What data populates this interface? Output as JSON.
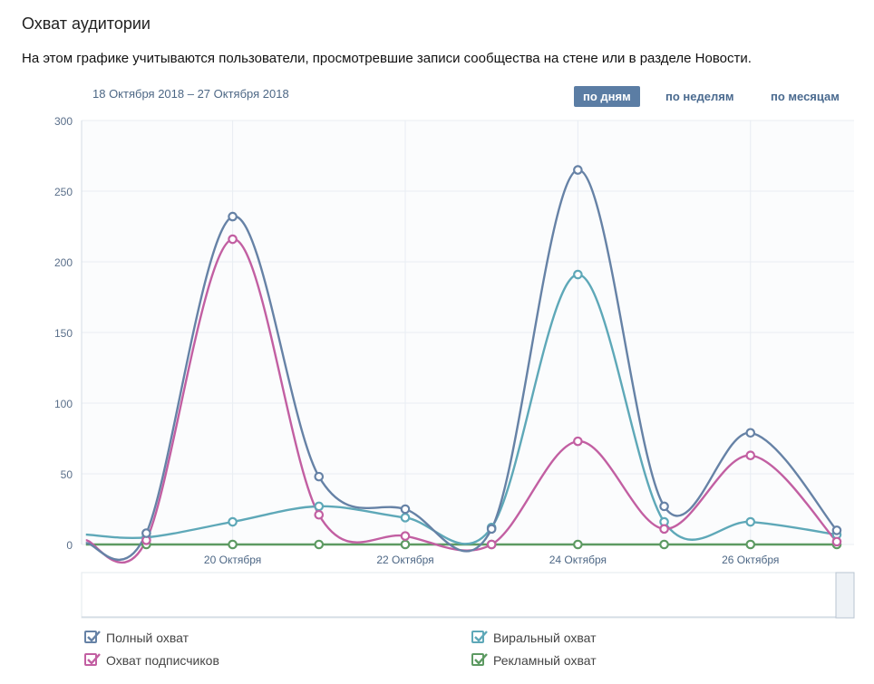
{
  "header": {
    "title": "Охват аудитории",
    "subtitle": "На этом графике учитываются пользователи, просмотревшие записи сообщества на стене или в разделе Новости.",
    "date_range": "18 Октября 2018 – 27 Октября 2018"
  },
  "period_tabs": [
    {
      "label": "по дням",
      "active": true
    },
    {
      "label": "по неделям",
      "active": false
    },
    {
      "label": "по месяцам",
      "active": false
    }
  ],
  "chart_data": {
    "type": "line",
    "x": [
      18.3,
      19,
      20,
      21,
      22,
      23,
      24,
      25,
      26,
      27
    ],
    "x_ticks": [
      {
        "x": 20,
        "label": "20 Октября"
      },
      {
        "x": 22,
        "label": "22 Октября"
      },
      {
        "x": 24,
        "label": "24 Октября"
      },
      {
        "x": 26,
        "label": "26 Октября"
      }
    ],
    "xlim": [
      18.25,
      27.2
    ],
    "ylim": [
      0,
      300
    ],
    "y_ticks": [
      0,
      50,
      100,
      150,
      200,
      250,
      300
    ],
    "grid": true,
    "series": [
      {
        "name": "Полный охват",
        "color": "#6682a6",
        "values": [
          1,
          8,
          232,
          48,
          25,
          11,
          265,
          27,
          79,
          10
        ]
      },
      {
        "name": "Охват подписчиков",
        "color": "#c25fa2",
        "values": [
          3,
          3,
          216,
          21,
          6,
          0,
          73,
          11,
          63,
          2
        ]
      },
      {
        "name": "Виральный охват",
        "color": "#5ea8b8",
        "values": [
          7,
          5,
          16,
          27,
          19,
          12,
          191,
          16,
          16,
          7
        ]
      },
      {
        "name": "Рекламный охват",
        "color": "#5d9a62",
        "values": [
          0,
          0,
          0,
          0,
          0,
          0,
          0,
          0,
          0,
          0
        ]
      }
    ]
  },
  "legend": [
    {
      "label": "Полный охват",
      "color": "#6682a6",
      "checked": true
    },
    {
      "label": "Виральный охват",
      "color": "#5ea8b8",
      "checked": true
    },
    {
      "label": "Охват подписчиков",
      "color": "#c25fa2",
      "checked": true
    },
    {
      "label": "Рекламный охват",
      "color": "#5d9a62",
      "checked": true
    }
  ]
}
